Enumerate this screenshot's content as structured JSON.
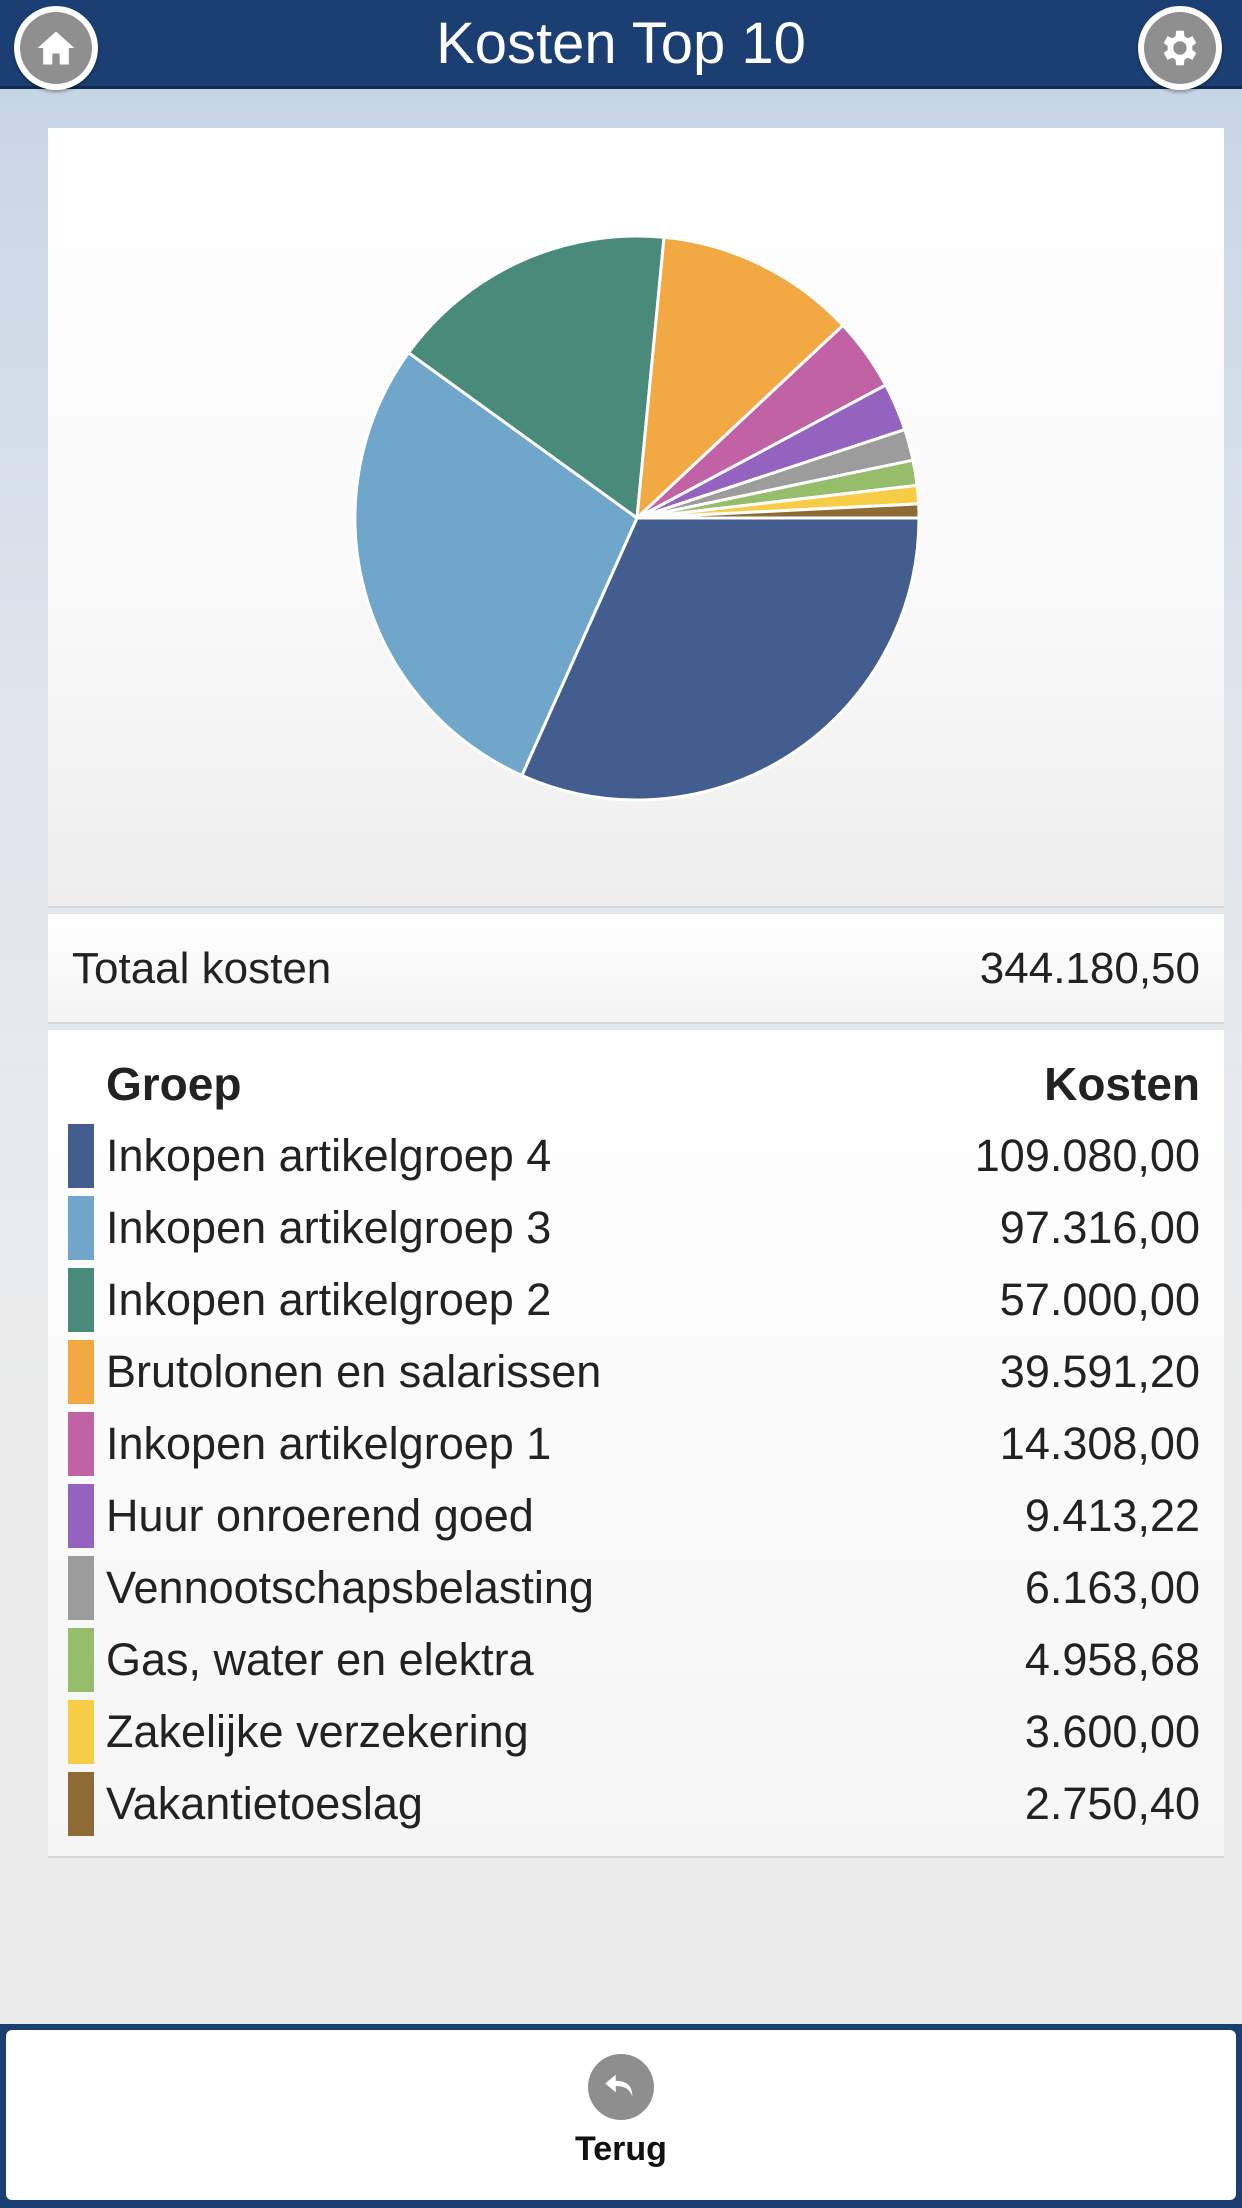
{
  "header": {
    "title": "Kosten Top 10",
    "home_icon": "home-icon",
    "settings_icon": "gear-icon"
  },
  "summary": {
    "total_label": "Totaal kosten",
    "total_value": "344.180,50"
  },
  "table": {
    "col_group": "Groep",
    "col_cost": "Kosten",
    "rows": [
      {
        "name": "Inkopen artikelgroep 4",
        "amount": "109.080,00",
        "color": "#435d8e"
      },
      {
        "name": "Inkopen artikelgroep 3",
        "amount": "97.316,00",
        "color": "#6fa6c9"
      },
      {
        "name": "Inkopen artikelgroep 2",
        "amount": "57.000,00",
        "color": "#4a8a7a"
      },
      {
        "name": "Brutolonen en salarissen",
        "amount": "39.591,20",
        "color": "#f2a944"
      },
      {
        "name": "Inkopen artikelgroep 1",
        "amount": "14.308,00",
        "color": "#c062a4"
      },
      {
        "name": "Huur onroerend goed",
        "amount": "9.413,22",
        "color": "#9463bf"
      },
      {
        "name": "Vennootschapsbelasting",
        "amount": "6.163,00",
        "color": "#9c9c9c"
      },
      {
        "name": "Gas, water en elektra",
        "amount": "4.958,68",
        "color": "#96bd6a"
      },
      {
        "name": "Zakelijke verzekering",
        "amount": "3.600,00",
        "color": "#f7cd48"
      },
      {
        "name": "Vakantietoeslag",
        "amount": "2.750,40",
        "color": "#8e6a35"
      }
    ]
  },
  "chart_data": {
    "type": "pie",
    "categories": [
      "Inkopen artikelgroep 4",
      "Inkopen artikelgroep 3",
      "Inkopen artikelgroep 2",
      "Brutolonen en salarissen",
      "Inkopen artikelgroep 1",
      "Huur onroerend goed",
      "Vennootschapsbelasting",
      "Gas, water en elektra",
      "Zakelijke verzekering",
      "Vakantietoeslag"
    ],
    "values": [
      109080.0,
      97316.0,
      57000.0,
      39591.2,
      14308.0,
      9413.22,
      6163.0,
      4958.68,
      3600.0,
      2750.4
    ],
    "colors": [
      "#435d8e",
      "#6fa6c9",
      "#4a8a7a",
      "#f2a944",
      "#c062a4",
      "#9463bf",
      "#9c9c9c",
      "#96bd6a",
      "#f7cd48",
      "#8e6a35"
    ]
  },
  "footer": {
    "back_label": "Terug",
    "back_icon": "undo-arrow-icon"
  }
}
